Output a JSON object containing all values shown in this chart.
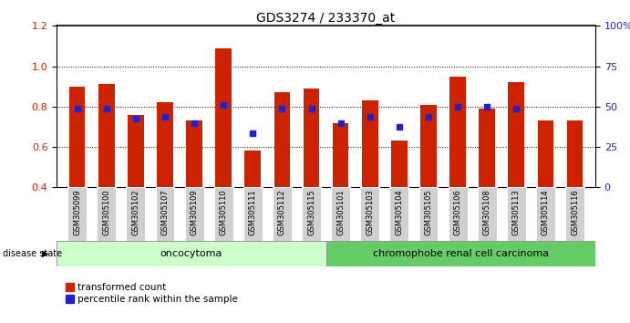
{
  "title": "GDS3274 / 233370_at",
  "samples": [
    "GSM305099",
    "GSM305100",
    "GSM305102",
    "GSM305107",
    "GSM305109",
    "GSM305110",
    "GSM305111",
    "GSM305112",
    "GSM305115",
    "GSM305101",
    "GSM305103",
    "GSM305104",
    "GSM305105",
    "GSM305106",
    "GSM305108",
    "GSM305113",
    "GSM305114",
    "GSM305116"
  ],
  "red_values": [
    0.9,
    0.91,
    0.76,
    0.82,
    0.73,
    1.09,
    0.58,
    0.87,
    0.89,
    0.72,
    0.83,
    0.63,
    0.81,
    0.95,
    0.79,
    0.92,
    0.73,
    0.73
  ],
  "blue_values": [
    0.79,
    0.79,
    0.74,
    0.75,
    0.72,
    0.81,
    0.67,
    0.79,
    0.79,
    0.72,
    0.75,
    0.7,
    0.75,
    0.8,
    0.8,
    0.79,
    null,
    null
  ],
  "ylim_left": [
    0.4,
    1.2
  ],
  "ylim_right": [
    0,
    100
  ],
  "y_left_ticks": [
    0.4,
    0.6,
    0.8,
    1.0,
    1.2
  ],
  "y_right_ticks": [
    0,
    25,
    50,
    75,
    100
  ],
  "y_right_tick_labels": [
    "0",
    "25",
    "50",
    "75",
    "100%"
  ],
  "bar_color": "#cc2200",
  "blue_color": "#2222cc",
  "group1_label": "oncocytoma",
  "group2_label": "chromophobe renal cell carcinoma",
  "group1_count": 9,
  "group2_count": 9,
  "disease_state_label": "disease state",
  "legend_red": "transformed count",
  "legend_blue": "percentile rank within the sample",
  "group1_bg": "#ccffcc",
  "group2_bg": "#66cc66",
  "bar_width": 0.55,
  "baseline": 0.4
}
